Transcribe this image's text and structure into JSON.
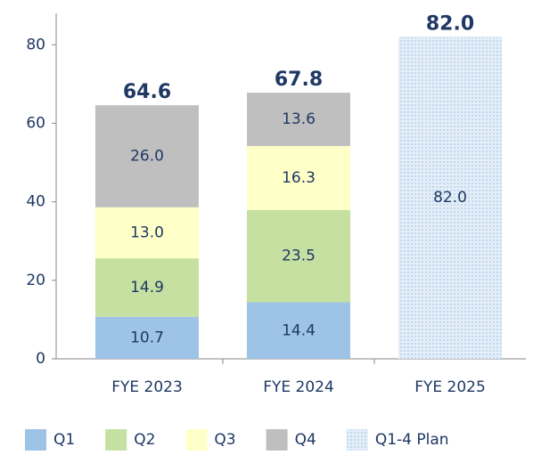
{
  "chart_data": {
    "type": "stacked_bar",
    "categories": [
      "FYE 2023",
      "FYE 2024",
      "FYE 2025"
    ],
    "series": [
      {
        "name": "Q1",
        "color": "#9dc3e6",
        "values": [
          10.7,
          14.4,
          null
        ],
        "value_labels": [
          "10.7",
          "14.4",
          null
        ]
      },
      {
        "name": "Q2",
        "color": "#c5e0a0",
        "values": [
          14.9,
          23.5,
          null
        ],
        "value_labels": [
          "14.9",
          "23.5",
          null
        ]
      },
      {
        "name": "Q3",
        "color": "#ffffc8",
        "values": [
          13.0,
          16.3,
          null
        ],
        "value_labels": [
          "13.0",
          "16.3",
          null
        ]
      },
      {
        "name": "Q4",
        "color": "#bfbfbf",
        "values": [
          26.0,
          13.6,
          null
        ],
        "value_labels": [
          "26.0",
          "13.6",
          null
        ]
      },
      {
        "name": "Q1-4 Plan",
        "color": "#d6e6f5",
        "pattern": "dots",
        "values": [
          null,
          null,
          82.0
        ],
        "value_labels": [
          null,
          null,
          "82.0"
        ]
      }
    ],
    "totals": {
      "values": [
        64.6,
        67.8,
        82.0
      ],
      "value_labels": [
        "64.6",
        "67.8",
        "82.0"
      ]
    },
    "ylim": [
      0,
      88
    ],
    "yticks": [
      0,
      20,
      40,
      60,
      80
    ],
    "legend": "bottom"
  }
}
